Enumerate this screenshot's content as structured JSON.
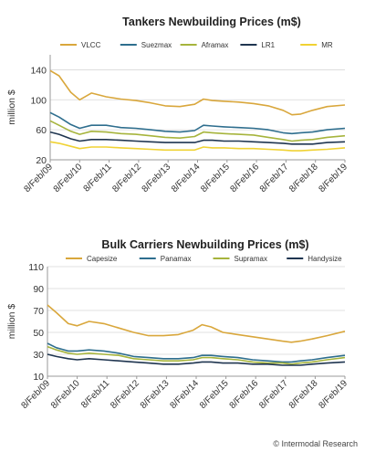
{
  "credit": "© Intermodal Research",
  "chart_data": [
    {
      "type": "line",
      "title": "Tankers Newbuilding Prices (m$)",
      "xlabel": "",
      "ylabel": "million $",
      "ylim": [
        20,
        160
      ],
      "yticks": [
        20,
        60,
        100,
        140
      ],
      "grid": true,
      "legend": "top",
      "x_tick_labels": [
        "8/Feb/09",
        "8/Feb/10",
        "8/Feb/11",
        "8/Feb/12",
        "8/Feb/13",
        "8/Feb/14",
        "8/Feb/15",
        "8/Feb/16",
        "8/Feb/17",
        "8/Feb/18",
        "8/Feb/19"
      ],
      "x": [
        2009.1,
        2009.4,
        2009.8,
        2010.1,
        2010.5,
        2011.0,
        2011.5,
        2012.0,
        2012.5,
        2013.0,
        2013.5,
        2014.0,
        2014.3,
        2014.6,
        2015.0,
        2015.5,
        2016.0,
        2016.5,
        2017.0,
        2017.3,
        2017.6,
        2018.0,
        2018.5,
        2019.1
      ],
      "series": [
        {
          "name": "VLCC",
          "color": "#d9a73c",
          "values": [
            139,
            132,
            110,
            100,
            109,
            104,
            101,
            99,
            96,
            92,
            91,
            94,
            101,
            99,
            98,
            97,
            95,
            92,
            86,
            80,
            81,
            86,
            91,
            93
          ]
        },
        {
          "name": "Suezmax",
          "color": "#2e6e8e",
          "values": [
            83,
            77,
            67,
            62,
            66,
            66,
            63,
            62,
            60,
            58,
            57,
            59,
            66,
            65,
            64,
            63,
            62,
            60,
            56,
            55,
            56,
            57,
            60,
            62
          ]
        },
        {
          "name": "Aframax",
          "color": "#a6b43c",
          "values": [
            72,
            66,
            58,
            54,
            58,
            57,
            55,
            54,
            52,
            50,
            49,
            51,
            57,
            56,
            55,
            54,
            53,
            50,
            47,
            45,
            46,
            47,
            50,
            52
          ]
        },
        {
          "name": "LR1",
          "color": "#1f3550",
          "values": [
            57,
            54,
            48,
            45,
            47,
            47,
            46,
            45,
            44,
            43,
            43,
            43,
            46,
            46,
            45,
            45,
            44,
            43,
            42,
            41,
            41,
            41,
            43,
            44
          ]
        },
        {
          "name": "MR",
          "color": "#f0d233",
          "values": [
            44,
            42,
            38,
            35,
            37,
            37,
            36,
            35,
            34,
            33,
            33,
            33,
            37,
            36,
            36,
            35,
            35,
            34,
            33,
            32,
            32,
            33,
            34,
            36
          ]
        }
      ]
    },
    {
      "type": "line",
      "title": "Bulk Carriers Newbuilding Prices (m$)",
      "xlabel": "",
      "ylabel": "million $",
      "ylim": [
        10,
        110
      ],
      "yticks": [
        10,
        30,
        50,
        70,
        90,
        110
      ],
      "grid": true,
      "legend": "top",
      "x_tick_labels": [
        "8/Feb/09",
        "8/Feb/10",
        "8/Feb/11",
        "8/Feb/12",
        "8/Feb/13",
        "8/Feb/14",
        "8/Feb/15",
        "8/Feb/16",
        "8/Feb/17",
        "8/Feb/18",
        "8/Feb/19"
      ],
      "x": [
        2009.1,
        2009.4,
        2009.8,
        2010.1,
        2010.5,
        2011.0,
        2011.5,
        2012.0,
        2012.5,
        2013.0,
        2013.5,
        2014.0,
        2014.3,
        2014.6,
        2015.0,
        2015.5,
        2016.0,
        2016.5,
        2017.0,
        2017.3,
        2017.6,
        2018.0,
        2018.5,
        2019.1
      ],
      "series": [
        {
          "name": "Capesize",
          "color": "#d9a73c",
          "values": [
            75,
            68,
            58,
            56,
            60,
            58,
            54,
            50,
            47,
            47,
            48,
            52,
            57,
            55,
            50,
            48,
            46,
            44,
            42,
            41,
            42,
            44,
            47,
            51
          ]
        },
        {
          "name": "Panamax",
          "color": "#2e6e8e",
          "values": [
            40,
            36,
            33,
            33,
            34,
            33,
            31,
            28,
            27,
            26,
            26,
            27,
            29,
            29,
            28,
            27,
            25,
            24,
            23,
            23,
            24,
            25,
            27,
            29
          ]
        },
        {
          "name": "Supramax",
          "color": "#a6b43c",
          "values": [
            37,
            34,
            31,
            30,
            31,
            30,
            29,
            26,
            25,
            24,
            24,
            25,
            27,
            27,
            26,
            25,
            23,
            22,
            22,
            21,
            22,
            23,
            25,
            27
          ]
        },
        {
          "name": "Handysize",
          "color": "#1f3550",
          "values": [
            30,
            28,
            26,
            25,
            26,
            25,
            24,
            23,
            22,
            21,
            21,
            22,
            23,
            23,
            22,
            22,
            21,
            21,
            20,
            20,
            20,
            21,
            22,
            23
          ]
        }
      ]
    }
  ]
}
